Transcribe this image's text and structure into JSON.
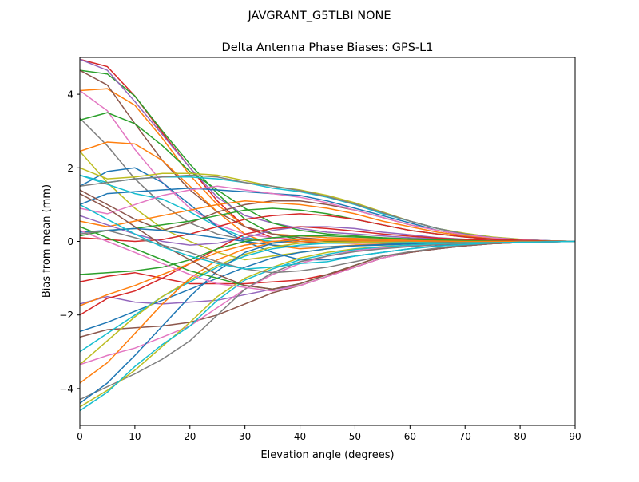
{
  "suptitle": "JAVGRANT_G5TLBI NONE",
  "chart_data": {
    "type": "line",
    "title": "Delta Antenna Phase Biases: GPS-L1",
    "xlabel": "Elevation angle (degrees)",
    "ylabel": "Bias from mean (mm)",
    "xlim": [
      0,
      90
    ],
    "ylim": [
      -5,
      5
    ],
    "xticks": [
      0,
      10,
      20,
      30,
      40,
      50,
      60,
      70,
      80,
      90
    ],
    "yticks": [
      -4,
      -2,
      0,
      2,
      4
    ],
    "grid": false,
    "legend": "none",
    "colors": [
      "#1f77b4",
      "#ff7f0e",
      "#2ca02c",
      "#d62728",
      "#9467bd",
      "#8c564b",
      "#e377c2",
      "#7f7f7f",
      "#bcbd22",
      "#17becf"
    ],
    "x": [
      0,
      5,
      10,
      15,
      20,
      25,
      30,
      35,
      40,
      45,
      50,
      55,
      60,
      65,
      70,
      75,
      80,
      85,
      90
    ],
    "series": [
      {
        "color": "#d62728",
        "values": [
          4.95,
          4.75,
          3.95,
          2.95,
          2.0,
          1.1,
          0.4,
          0.1,
          0.0,
          -0.05,
          -0.05,
          -0.04,
          -0.03,
          -0.02,
          -0.02,
          -0.01,
          0,
          0,
          0
        ]
      },
      {
        "color": "#ff7f0e",
        "values": [
          4.1,
          4.15,
          3.7,
          2.8,
          1.8,
          1.0,
          0.4,
          0.2,
          0.15,
          0.1,
          0.08,
          0.06,
          0.04,
          0.03,
          0.02,
          0.01,
          0,
          0,
          0
        ]
      },
      {
        "color": "#2ca02c",
        "values": [
          4.65,
          4.55,
          3.95,
          3.0,
          2.1,
          1.3,
          0.6,
          0.2,
          0.05,
          0,
          0,
          0,
          0,
          0,
          0,
          0,
          0,
          0,
          0
        ]
      },
      {
        "color": "#9467bd",
        "values": [
          4.95,
          4.65,
          3.8,
          2.9,
          2.0,
          1.2,
          0.7,
          0.5,
          0.35,
          0.25,
          0.2,
          0.15,
          0.1,
          0.07,
          0.04,
          0.02,
          0.01,
          0,
          0
        ]
      },
      {
        "color": "#8c564b",
        "values": [
          4.65,
          4.25,
          3.2,
          2.2,
          1.4,
          0.8,
          0.4,
          0.2,
          0.1,
          0.05,
          0.03,
          0.02,
          0.01,
          0,
          0,
          0,
          0,
          0,
          0
        ]
      },
      {
        "color": "#e377c2",
        "values": [
          4.1,
          3.55,
          2.5,
          1.6,
          0.9,
          0.45,
          0.2,
          0.1,
          0.05,
          0.03,
          0.02,
          0.01,
          0,
          0,
          0,
          0,
          0,
          0,
          0
        ]
      },
      {
        "color": "#7f7f7f",
        "values": [
          3.35,
          2.6,
          1.7,
          1.0,
          0.5,
          0.2,
          0.05,
          0,
          -0.05,
          -0.05,
          -0.04,
          -0.03,
          -0.02,
          -0.01,
          0,
          0,
          0,
          0,
          0
        ]
      },
      {
        "color": "#bcbd22",
        "values": [
          2.45,
          1.6,
          0.9,
          0.35,
          0,
          -0.3,
          -0.5,
          -0.4,
          -0.3,
          -0.2,
          -0.1,
          -0.08,
          -0.06,
          -0.04,
          -0.03,
          -0.02,
          -0.01,
          0,
          0
        ]
      },
      {
        "color": "#17becf",
        "values": [
          1.8,
          1.55,
          1.3,
          1.15,
          0.8,
          0.4,
          0.1,
          0,
          -0.05,
          -0.05,
          -0.04,
          -0.03,
          -0.02,
          -0.01,
          0,
          0,
          0,
          0,
          0
        ]
      },
      {
        "color": "#1f77b4",
        "values": [
          1.5,
          1.9,
          2.0,
          1.6,
          1.0,
          0.4,
          0.0,
          -0.3,
          -0.5,
          -0.5,
          -0.4,
          -0.3,
          -0.2,
          -0.12,
          -0.07,
          -0.04,
          -0.02,
          -0.01,
          0
        ]
      },
      {
        "color": "#ff7f0e",
        "values": [
          2.45,
          2.7,
          2.65,
          2.2,
          1.5,
          0.8,
          0.2,
          -0.1,
          -0.2,
          -0.15,
          -0.1,
          -0.07,
          -0.05,
          -0.03,
          -0.02,
          -0.01,
          0,
          0,
          0
        ]
      },
      {
        "color": "#2ca02c",
        "values": [
          3.3,
          3.5,
          3.2,
          2.6,
          1.9,
          1.4,
          0.9,
          0.5,
          0.3,
          0.2,
          0.15,
          0.1,
          0.07,
          0.05,
          0.03,
          0.02,
          0.01,
          0,
          0
        ]
      },
      {
        "color": "#bcbd22",
        "values": [
          2.0,
          1.7,
          1.75,
          1.85,
          1.85,
          1.8,
          1.65,
          1.5,
          1.4,
          1.25,
          1.05,
          0.8,
          0.55,
          0.35,
          0.22,
          0.12,
          0.06,
          0.02,
          0
        ]
      },
      {
        "color": "#17becf",
        "values": [
          1.8,
          1.6,
          1.7,
          1.75,
          1.75,
          1.7,
          1.6,
          1.45,
          1.35,
          1.2,
          1.0,
          0.75,
          0.55,
          0.35,
          0.2,
          0.1,
          0.05,
          0.02,
          0
        ]
      },
      {
        "color": "#7f7f7f",
        "values": [
          1.5,
          1.6,
          1.7,
          1.75,
          1.8,
          1.75,
          1.6,
          1.5,
          1.38,
          1.22,
          1.02,
          0.78,
          0.55,
          0.35,
          0.2,
          0.1,
          0.05,
          0.02,
          0
        ]
      },
      {
        "color": "#1f77b4",
        "values": [
          1.0,
          1.3,
          1.35,
          1.4,
          1.45,
          1.4,
          1.35,
          1.3,
          1.25,
          1.1,
          0.9,
          0.7,
          0.5,
          0.3,
          0.18,
          0.1,
          0.05,
          0.02,
          0
        ]
      },
      {
        "color": "#8c564b",
        "values": [
          1.4,
          1.0,
          0.6,
          0.3,
          0.5,
          0.8,
          1.0,
          1.1,
          1.1,
          1.0,
          0.85,
          0.65,
          0.45,
          0.3,
          0.17,
          0.08,
          0.04,
          0.01,
          0
        ]
      },
      {
        "color": "#ff7f0e",
        "values": [
          0.55,
          0.4,
          0.55,
          0.7,
          0.85,
          1.0,
          1.1,
          1.05,
          1.0,
          0.9,
          0.75,
          0.55,
          0.4,
          0.25,
          0.15,
          0.08,
          0.03,
          0.01,
          0
        ]
      },
      {
        "color": "#e377c2",
        "values": [
          0.9,
          0.75,
          1.0,
          1.25,
          1.4,
          1.5,
          1.4,
          1.3,
          1.2,
          1.05,
          0.85,
          0.65,
          0.45,
          0.3,
          0.18,
          0.1,
          0.05,
          0.02,
          0
        ]
      },
      {
        "color": "#2ca02c",
        "values": [
          0.15,
          0.3,
          0.35,
          0.45,
          0.55,
          0.7,
          0.85,
          0.9,
          0.85,
          0.75,
          0.6,
          0.45,
          0.3,
          0.2,
          0.12,
          0.06,
          0.03,
          0.01,
          0
        ]
      },
      {
        "color": "#d62728",
        "values": [
          0.1,
          0.05,
          0,
          0.05,
          0.2,
          0.4,
          0.6,
          0.7,
          0.75,
          0.7,
          0.6,
          0.45,
          0.3,
          0.2,
          0.12,
          0.06,
          0.03,
          0.01,
          0
        ]
      },
      {
        "color": "#9467bd",
        "values": [
          0.7,
          0.45,
          0.2,
          0.0,
          -0.1,
          -0.05,
          0.1,
          0.3,
          0.4,
          0.4,
          0.35,
          0.25,
          0.18,
          0.1,
          0.06,
          0.03,
          0.01,
          0,
          0
        ]
      },
      {
        "color": "#1f77b4",
        "values": [
          0.25,
          0.3,
          0.35,
          0.3,
          0.2,
          0.1,
          0.0,
          -0.1,
          -0.15,
          -0.15,
          -0.12,
          -0.1,
          -0.07,
          -0.05,
          -0.03,
          -0.02,
          -0.01,
          0,
          0
        ]
      },
      {
        "color": "#d62728",
        "values": [
          -1.1,
          -0.95,
          -0.85,
          -1.0,
          -1.15,
          -1.15,
          -1.15,
          -1.1,
          -1.05,
          -0.9,
          -0.7,
          -0.45,
          -0.3,
          -0.2,
          -0.12,
          -0.06,
          -0.03,
          -0.01,
          0
        ]
      },
      {
        "color": "#9467bd",
        "values": [
          -1.7,
          -1.5,
          -1.65,
          -1.7,
          -1.65,
          -1.6,
          -1.45,
          -1.3,
          -1.2,
          -0.95,
          -0.7,
          -0.45,
          -0.3,
          -0.2,
          -0.12,
          -0.06,
          -0.03,
          -0.01,
          0
        ]
      },
      {
        "color": "#8c564b",
        "values": [
          -2.6,
          -2.4,
          -2.35,
          -2.3,
          -2.2,
          -2.0,
          -1.7,
          -1.4,
          -1.2,
          -0.95,
          -0.7,
          -0.45,
          -0.3,
          -0.2,
          -0.12,
          -0.06,
          -0.03,
          -0.01,
          0
        ]
      },
      {
        "color": "#1f77b4",
        "values": [
          -2.45,
          -2.2,
          -1.9,
          -1.6,
          -1.3,
          -1.0,
          -0.7,
          -0.45,
          -0.3,
          -0.2,
          -0.12,
          -0.08,
          -0.05,
          -0.03,
          -0.02,
          -0.01,
          0,
          0,
          0
        ]
      },
      {
        "color": "#17becf",
        "values": [
          -3.0,
          -2.5,
          -2.0,
          -1.5,
          -1.1,
          -0.7,
          -0.4,
          -0.2,
          -0.1,
          -0.05,
          -0.04,
          -0.03,
          -0.02,
          -0.01,
          0,
          0,
          0,
          0,
          0
        ]
      },
      {
        "color": "#bcbd22",
        "values": [
          -3.35,
          -2.7,
          -2.05,
          -1.5,
          -1.05,
          -0.65,
          -0.35,
          -0.15,
          -0.05,
          -0.03,
          -0.02,
          -0.01,
          0,
          0,
          0,
          0,
          0,
          0,
          0
        ]
      },
      {
        "color": "#e377c2",
        "values": [
          -3.35,
          -3.1,
          -2.9,
          -2.6,
          -2.3,
          -1.8,
          -1.3,
          -0.9,
          -0.6,
          -0.4,
          -0.25,
          -0.18,
          -0.12,
          -0.08,
          -0.05,
          -0.03,
          -0.01,
          0,
          0
        ]
      },
      {
        "color": "#ff7f0e",
        "values": [
          -3.85,
          -3.3,
          -2.5,
          -1.7,
          -1.0,
          -0.5,
          -0.2,
          -0.05,
          0,
          0.02,
          0.02,
          0.01,
          0.01,
          0,
          0,
          0,
          0,
          0,
          0
        ]
      },
      {
        "color": "#7f7f7f",
        "values": [
          -4.3,
          -3.95,
          -3.6,
          -3.2,
          -2.7,
          -2.0,
          -1.3,
          -0.85,
          -0.55,
          -0.4,
          -0.28,
          -0.2,
          -0.14,
          -0.09,
          -0.05,
          -0.03,
          -0.01,
          0,
          0
        ]
      },
      {
        "color": "#1f77b4",
        "values": [
          -4.4,
          -3.85,
          -3.1,
          -2.3,
          -1.5,
          -0.8,
          -0.3,
          -0.05,
          0.05,
          0.05,
          0.04,
          0.03,
          0.02,
          0.01,
          0,
          0,
          0,
          0,
          0
        ]
      },
      {
        "color": "#bcbd22",
        "values": [
          -4.5,
          -4.05,
          -3.5,
          -2.85,
          -2.2,
          -1.5,
          -1.0,
          -0.7,
          -0.45,
          -0.3,
          -0.2,
          -0.14,
          -0.1,
          -0.06,
          -0.04,
          -0.02,
          -0.01,
          0,
          0
        ]
      },
      {
        "color": "#17becf",
        "values": [
          -4.6,
          -4.1,
          -3.4,
          -2.8,
          -2.3,
          -1.6,
          -1.05,
          -0.75,
          -0.5,
          -0.35,
          -0.22,
          -0.15,
          -0.1,
          -0.06,
          -0.04,
          -0.02,
          -0.01,
          0,
          0
        ]
      },
      {
        "color": "#d62728",
        "values": [
          -2.0,
          -1.55,
          -1.35,
          -1.0,
          -0.6,
          -0.2,
          0.2,
          0.35,
          0.4,
          0.35,
          0.28,
          0.2,
          0.14,
          0.09,
          0.05,
          0.03,
          0.01,
          0,
          0
        ]
      },
      {
        "color": "#2ca02c",
        "values": [
          -0.9,
          -0.85,
          -0.8,
          -0.7,
          -0.5,
          -0.2,
          0,
          0.1,
          0.15,
          0.15,
          0.12,
          0.09,
          0.06,
          0.04,
          0.02,
          0.01,
          0,
          0,
          0
        ]
      },
      {
        "color": "#ff7f0e",
        "values": [
          -1.75,
          -1.45,
          -1.2,
          -0.9,
          -0.6,
          -0.3,
          -0.1,
          0,
          0.05,
          0.05,
          0.04,
          0.03,
          0.02,
          0.01,
          0,
          0,
          0,
          0,
          0
        ]
      },
      {
        "color": "#2ca02c",
        "values": [
          0.4,
          0.1,
          -0.2,
          -0.5,
          -0.8,
          -1.0,
          -1.2,
          -1.3,
          -1.15,
          -0.9,
          -0.65,
          -0.4,
          -0.3,
          -0.2,
          -0.12,
          -0.06,
          -0.03,
          -0.01,
          0
        ]
      },
      {
        "color": "#e377c2",
        "values": [
          0.3,
          0.0,
          -0.3,
          -0.6,
          -0.9,
          -1.15,
          -1.25,
          -1.35,
          -1.2,
          -0.95,
          -0.7,
          -0.45,
          -0.3,
          -0.2,
          -0.12,
          -0.06,
          -0.03,
          -0.01,
          0
        ]
      },
      {
        "color": "#8c564b",
        "values": [
          1.3,
          0.9,
          0.4,
          -0.1,
          -0.5,
          -0.9,
          -1.2,
          -1.3,
          -1.15,
          -0.9,
          -0.65,
          -0.4,
          -0.3,
          -0.2,
          -0.12,
          -0.06,
          -0.03,
          -0.01,
          0
        ]
      },
      {
        "color": "#7f7f7f",
        "values": [
          0.2,
          0.3,
          0.1,
          -0.1,
          -0.3,
          -0.55,
          -0.75,
          -0.85,
          -0.8,
          -0.7,
          -0.55,
          -0.4,
          -0.28,
          -0.18,
          -0.1,
          -0.05,
          -0.02,
          -0.01,
          0
        ]
      },
      {
        "color": "#17becf",
        "values": [
          1.0,
          0.6,
          0.2,
          -0.15,
          -0.4,
          -0.6,
          -0.75,
          -0.7,
          -0.6,
          -0.55,
          -0.4,
          -0.3,
          -0.2,
          -0.13,
          -0.08,
          -0.04,
          -0.02,
          -0.01,
          0
        ]
      }
    ]
  }
}
